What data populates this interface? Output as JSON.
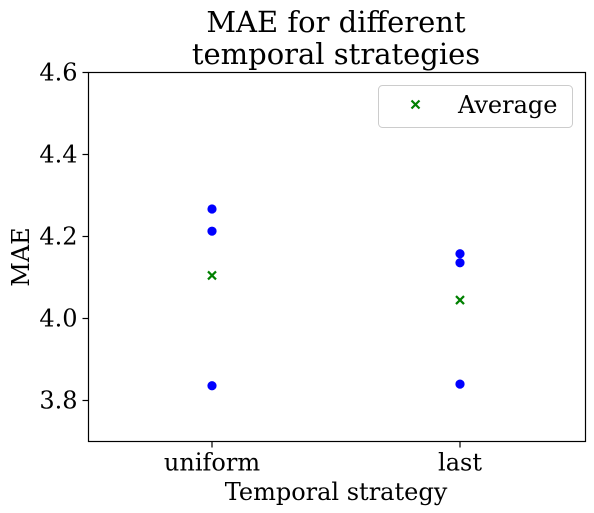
{
  "chart_data": {
    "type": "scatter",
    "title_lines": [
      "MAE for different",
      "temporal strategies"
    ],
    "xlabel": "Temporal strategy",
    "ylabel": "MAE",
    "categories": [
      "uniform",
      "last"
    ],
    "ylim": [
      3.7,
      4.6
    ],
    "yticks": [
      3.8,
      4.0,
      4.2,
      4.4,
      4.6
    ],
    "ytick_labels": [
      "3.8",
      "4.0",
      "4.2",
      "4.4",
      "4.6"
    ],
    "series": [
      {
        "name": "",
        "marker": "circle",
        "color": "#0000ff",
        "points": [
          {
            "x": "uniform",
            "y": 4.267
          },
          {
            "x": "uniform",
            "y": 4.213
          },
          {
            "x": "uniform",
            "y": 3.836
          },
          {
            "x": "last",
            "y": 4.158
          },
          {
            "x": "last",
            "y": 4.136
          },
          {
            "x": "last",
            "y": 3.84
          }
        ]
      },
      {
        "name": "Average",
        "marker": "x",
        "color": "#008000",
        "points": [
          {
            "x": "uniform",
            "y": 4.105
          },
          {
            "x": "last",
            "y": 4.045
          }
        ]
      }
    ],
    "legend": {
      "position": "top-right",
      "entries": [
        "Average"
      ]
    },
    "grid": false
  }
}
